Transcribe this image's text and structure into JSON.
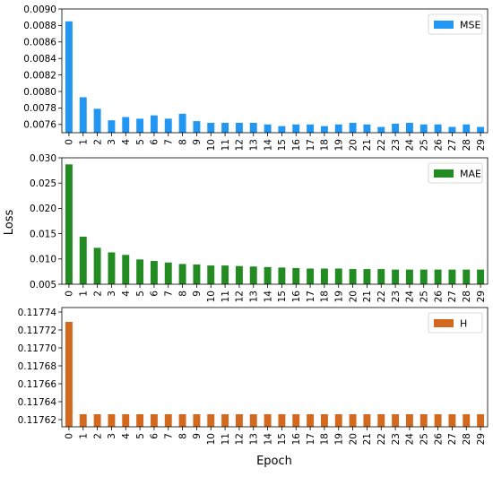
{
  "figure": {
    "xlabel": "Epoch",
    "ylabel": "Loss"
  },
  "chart_data": [
    {
      "type": "bar",
      "categories": [
        "0",
        "1",
        "2",
        "3",
        "4",
        "5",
        "6",
        "7",
        "8",
        "9",
        "10",
        "11",
        "12",
        "13",
        "14",
        "15",
        "16",
        "17",
        "18",
        "19",
        "20",
        "21",
        "22",
        "23",
        "24",
        "25",
        "26",
        "27",
        "28",
        "29"
      ],
      "series": [
        {
          "name": "MSE",
          "color": "#2196f3",
          "values": [
            0.00885,
            0.00793,
            0.00779,
            0.00765,
            0.00769,
            0.00767,
            0.00771,
            0.00767,
            0.00773,
            0.00764,
            0.00762,
            0.00762,
            0.00762,
            0.00762,
            0.0076,
            0.00758,
            0.0076,
            0.0076,
            0.00758,
            0.0076,
            0.00762,
            0.0076,
            0.00757,
            0.00761,
            0.00762,
            0.0076,
            0.0076,
            0.00757,
            0.0076,
            0.00757
          ]
        }
      ],
      "ylim": [
        0.0075,
        0.009
      ],
      "yticks": [
        "0.0076",
        "0.0078",
        "0.0080",
        "0.0082",
        "0.0084",
        "0.0086",
        "0.0088",
        "0.0090"
      ],
      "ytick_values": [
        0.0076,
        0.0078,
        0.008,
        0.0082,
        0.0084,
        0.0086,
        0.0088,
        0.009
      ],
      "legend": "top-right",
      "grid": false
    },
    {
      "type": "bar",
      "categories": [
        "0",
        "1",
        "2",
        "3",
        "4",
        "5",
        "6",
        "7",
        "8",
        "9",
        "10",
        "11",
        "12",
        "13",
        "14",
        "15",
        "16",
        "17",
        "18",
        "19",
        "20",
        "21",
        "22",
        "23",
        "24",
        "25",
        "26",
        "27",
        "28",
        "29"
      ],
      "series": [
        {
          "name": "MAE",
          "color": "#228b22",
          "values": [
            0.0287,
            0.0144,
            0.0122,
            0.0113,
            0.0108,
            0.0099,
            0.0096,
            0.0093,
            0.009,
            0.0089,
            0.0087,
            0.0087,
            0.0086,
            0.0085,
            0.0084,
            0.0083,
            0.0082,
            0.0081,
            0.0081,
            0.0081,
            0.008,
            0.008,
            0.008,
            0.0079,
            0.0079,
            0.0079,
            0.0079,
            0.0079,
            0.0079,
            0.0079
          ]
        }
      ],
      "ylim": [
        0.005,
        0.03
      ],
      "yticks": [
        "0.005",
        "0.010",
        "0.015",
        "0.020",
        "0.025",
        "0.030"
      ],
      "ytick_values": [
        0.005,
        0.01,
        0.015,
        0.02,
        0.025,
        0.03
      ],
      "legend": "top-right",
      "grid": false
    },
    {
      "type": "bar",
      "categories": [
        "0",
        "1",
        "2",
        "3",
        "4",
        "5",
        "6",
        "7",
        "8",
        "9",
        "10",
        "11",
        "12",
        "13",
        "14",
        "15",
        "16",
        "17",
        "18",
        "19",
        "20",
        "21",
        "22",
        "23",
        "24",
        "25",
        "26",
        "27",
        "28",
        "29"
      ],
      "series": [
        {
          "name": "H",
          "color": "#d2691e",
          "values": [
            0.117729,
            0.117626,
            0.117626,
            0.117626,
            0.117626,
            0.117626,
            0.117626,
            0.117626,
            0.117626,
            0.117626,
            0.117626,
            0.117626,
            0.117626,
            0.117626,
            0.117626,
            0.117626,
            0.117626,
            0.117626,
            0.117626,
            0.117626,
            0.117626,
            0.117626,
            0.117626,
            0.117626,
            0.117626,
            0.117626,
            0.117626,
            0.117626,
            0.117626,
            0.117626
          ]
        }
      ],
      "ylim": [
        0.117612,
        0.117745
      ],
      "yticks": [
        "0.11762",
        "0.11764",
        "0.11766",
        "0.11768",
        "0.11770",
        "0.11772",
        "0.11774"
      ],
      "ytick_values": [
        0.11762,
        0.11764,
        0.11766,
        0.11768,
        0.1177,
        0.11772,
        0.11774
      ],
      "legend": "top-right",
      "grid": false
    }
  ]
}
